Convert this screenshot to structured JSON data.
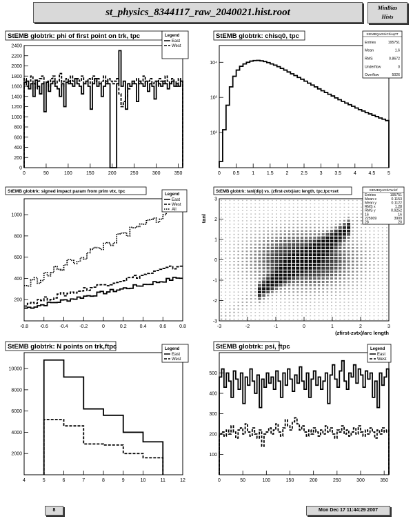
{
  "header": {
    "title": "st_physics_8344117_raw_2040021.hist.root",
    "tag_line1": "MinBias",
    "tag_line2": "Hists"
  },
  "footer": {
    "page": "8",
    "date": "Mon Dec 17 11:44:29 2007"
  },
  "chart_data": [
    {
      "type": "line",
      "title": "StEMB globtrk: phi of first point on trk, tpc",
      "xlim": [
        0,
        360
      ],
      "ylim": [
        0,
        2400
      ],
      "xticks": [
        0,
        50,
        100,
        150,
        200,
        250,
        300,
        350
      ],
      "yticks": [
        0,
        200,
        400,
        600,
        800,
        1000,
        1200,
        1400,
        1600,
        1800,
        2000,
        2200,
        2400
      ],
      "legend": {
        "title": "Legend",
        "entries": [
          "East",
          "West"
        ]
      },
      "bin_width": 5,
      "series": [
        {
          "name": "East",
          "style": "solid",
          "x0": 0,
          "values": [
            1680,
            1700,
            1550,
            1650,
            1400,
            1720,
            1600,
            1450,
            1650,
            1100,
            1680,
            1500,
            1650,
            1700,
            1600,
            1550,
            1400,
            1650,
            1200,
            1680,
            1700,
            1650,
            1600,
            1750,
            1650,
            1600,
            1450,
            1650,
            1700,
            1600,
            1150,
            1650,
            1750,
            1600,
            1650,
            1400,
            1600,
            1700,
            1650,
            0,
            0,
            0,
            1650,
            2300,
            1600,
            1700,
            1150,
            1650,
            1600,
            1700,
            1650,
            1300,
            1700,
            1650,
            1600,
            1700,
            1500,
            1650,
            1600,
            1350,
            1700,
            1650,
            1600,
            1700,
            1650,
            1550,
            1650,
            1700,
            1600,
            1650,
            1600,
            1700
          ]
        },
        {
          "name": "West",
          "style": "dashed",
          "x0": 0,
          "values": [
            1750,
            1600,
            1700,
            1800,
            1650,
            1550,
            1700,
            1750,
            1800,
            1650,
            1700,
            1600,
            1750,
            1800,
            1650,
            1700,
            1850,
            1600,
            1700,
            1750,
            1650,
            1800,
            1700,
            1650,
            1750,
            1700,
            1800,
            1650,
            1700,
            1750,
            1650,
            1800,
            1700,
            1750,
            1650,
            1700,
            1800,
            1650,
            1750,
            1700,
            1650,
            1700,
            1750,
            1450,
            1200,
            1300,
            1400,
            1550,
            1600,
            1650,
            1700,
            1750,
            1650,
            1700,
            1800,
            1650,
            1700,
            1750,
            1650,
            1700,
            1600,
            1750,
            1700,
            1650,
            1800,
            1700,
            1650,
            1750,
            1700,
            1600,
            1750,
            1700
          ]
        }
      ]
    },
    {
      "type": "line",
      "title": "StEMB globtrk: chisq0, tpc",
      "xlim": [
        0,
        5
      ],
      "ylog": true,
      "ylim": [
        10,
        30000
      ],
      "xticks": [
        0,
        0.5,
        1,
        1.5,
        2,
        2.5,
        3,
        3.5,
        4,
        4.5,
        5
      ],
      "yticks": [
        100,
        1000,
        10000
      ],
      "ytick_labels": [
        "10²",
        "10³",
        "10⁴"
      ],
      "stats": {
        "name": "StEMBQaGtrkChisq0T",
        "rows": [
          [
            "Entries",
            "195751"
          ],
          [
            "Mean",
            "1.6"
          ],
          [
            "RMS",
            "0.8672"
          ],
          [
            "Underflow",
            "0"
          ],
          [
            "Overflow",
            "5026"
          ]
        ]
      },
      "bin_width": 0.1,
      "series": [
        {
          "name": "",
          "style": "solid",
          "x0": 0,
          "values": [
            15,
            120,
            600,
            2000,
            4000,
            6000,
            7700,
            9000,
            10000,
            10800,
            11200,
            11300,
            11000,
            10500,
            9800,
            9000,
            8300,
            7500,
            6700,
            6000,
            5300,
            4700,
            4200,
            3700,
            3300,
            2900,
            2550,
            2250,
            2000,
            1750,
            1550,
            1380,
            1230,
            1100,
            970,
            860,
            770,
            690,
            620,
            560,
            500,
            450,
            410,
            370,
            340,
            310,
            285,
            260,
            240,
            220
          ]
        }
      ]
    },
    {
      "type": "line",
      "title": "StEMB globtrk: signed impact param from prim vtx, tpc",
      "xlim": [
        -0.8,
        0.8
      ],
      "ylim": [
        0,
        1150
      ],
      "xticks": [
        -0.8,
        -0.6,
        -0.4,
        -0.2,
        0,
        0.2,
        0.4,
        0.6,
        0.8
      ],
      "yticks": [
        200,
        400,
        600,
        800,
        1000
      ],
      "legend": {
        "title": "Legend",
        "entries": [
          "East",
          "West",
          "All"
        ]
      },
      "series": [
        {
          "name": "East",
          "style": "solid",
          "from": 120,
          "to": 410
        },
        {
          "name": "West",
          "style": "dashed",
          "from": 160,
          "to": 520
        },
        {
          "name": "All",
          "style": "dotted",
          "from": 330,
          "to": 1080
        }
      ]
    },
    {
      "type": "heatmap",
      "title": "StEMB globtrk: tanl(dip) vs. (zfirst-zvtx)/arc length, tpc,tpc+svt",
      "xlabel": "(zfirst-zvtx)/arc length",
      "ylabel": "tanl",
      "xlim": [
        -3,
        3
      ],
      "ylim": [
        -3,
        3
      ],
      "xticks": [
        -3,
        -2,
        -1,
        0,
        1,
        2,
        3
      ],
      "yticks": [
        -3,
        -2,
        -1,
        0,
        1,
        2,
        3
      ],
      "stats": {
        "name": "StEMBQaGtrkTanlzf",
        "rows": [
          [
            "Entries",
            "195751"
          ],
          [
            "Mean x",
            "0.1153"
          ],
          [
            "Mean y",
            "0.1122"
          ],
          [
            "RMS x",
            "1.28"
          ],
          [
            "RMS y",
            "0.9252"
          ],
          [
            "16",
            "16"
          ],
          [
            "225909",
            "3909"
          ],
          [
            "28",
            "20"
          ]
        ]
      }
    },
    {
      "type": "line",
      "title": "StEMB globtrk: N points on trk,ftpc",
      "xlim": [
        4,
        12
      ],
      "ylim": [
        0,
        11500
      ],
      "xticks": [
        4,
        5,
        6,
        7,
        8,
        9,
        10,
        11,
        12
      ],
      "yticks": [
        2000,
        4000,
        6000,
        8000,
        10000
      ],
      "legend": {
        "title": "Legend",
        "entries": [
          "East",
          "West"
        ]
      },
      "bin_width": 1,
      "series": [
        {
          "name": "East",
          "style": "solid",
          "x0": 5,
          "values": [
            10800,
            9200,
            6200,
            5600,
            4000,
            3100
          ]
        },
        {
          "name": "West",
          "style": "dashed",
          "x0": 5,
          "values": [
            5200,
            4600,
            2900,
            2800,
            2000,
            1600
          ]
        }
      ]
    },
    {
      "type": "line",
      "title": "StEMB globtrk: psi, ftpc",
      "xlim": [
        0,
        360
      ],
      "ylim": [
        0,
        600
      ],
      "xticks": [
        0,
        50,
        100,
        150,
        200,
        250,
        300,
        350
      ],
      "yticks": [
        100,
        200,
        300,
        400,
        500
      ],
      "legend": {
        "title": "Legend",
        "entries": [
          "East",
          "West"
        ]
      },
      "bin_width": 5,
      "series": [
        {
          "name": "East",
          "style": "solid",
          "x0": 0,
          "values": [
            480,
            520,
            430,
            500,
            460,
            380,
            510,
            470,
            420,
            500,
            350,
            480,
            440,
            520,
            460,
            400,
            490,
            330,
            470,
            430,
            500,
            450,
            480,
            420,
            510,
            460,
            380,
            500,
            440,
            520,
            470,
            410,
            490,
            450,
            530,
            460,
            420,
            500,
            380,
            470,
            510,
            440,
            480,
            420,
            460,
            500,
            350,
            490,
            540,
            470,
            430,
            510,
            560,
            460,
            420,
            500,
            480,
            540,
            450,
            520,
            490,
            430,
            510,
            470,
            500,
            380,
            460,
            330,
            500,
            440,
            480,
            520
          ]
        },
        {
          "name": "West",
          "style": "dashed",
          "x0": 0,
          "values": [
            200,
            210,
            190,
            220,
            200,
            240,
            210,
            180,
            220,
            230,
            200,
            250,
            210,
            190,
            230,
            200,
            180,
            220,
            140,
            200,
            210,
            230,
            200,
            220,
            250,
            210,
            190,
            230,
            270,
            240,
            220,
            260,
            280,
            250,
            220,
            240,
            210,
            190,
            220,
            200,
            230,
            210,
            190,
            220,
            200,
            240,
            210,
            230,
            200,
            180,
            220,
            210,
            240,
            200,
            220,
            190,
            210,
            230,
            200,
            240,
            210,
            190,
            220,
            200,
            230,
            210,
            180,
            220,
            200,
            230,
            210,
            220
          ]
        }
      ]
    }
  ]
}
